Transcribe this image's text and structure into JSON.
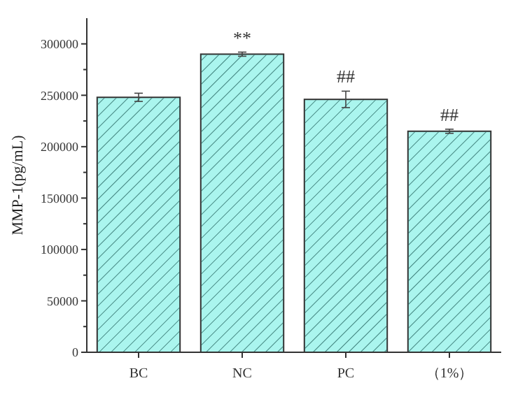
{
  "chart_data": {
    "type": "bar",
    "ylabel": "MMP-1(pg/mL)",
    "categories": [
      "BC",
      "NC",
      "PC",
      "（1%）"
    ],
    "values": [
      248000,
      290000,
      246000,
      215000
    ],
    "errors": [
      4000,
      2000,
      8000,
      2000
    ],
    "color": "#aaf5ee",
    "ylim": [
      0,
      325000
    ],
    "yticks": [
      0,
      {
        "value": 25000,
        "label": null
      },
      50000,
      {
        "value": 75000,
        "label": null
      },
      100000,
      {
        "value": 125000,
        "label": null
      },
      150000,
      {
        "value": 175000,
        "label": null
      },
      200000,
      {
        "value": 225000,
        "label": null
      },
      250000,
      {
        "value": 275000,
        "label": null
      },
      300000
    ],
    "annotations": [
      {
        "text": "**",
        "x": "NC",
        "y": 292000
      },
      {
        "text": "##",
        "x": "PC",
        "y": 254000
      },
      {
        "text": "##",
        "x": "（1%）",
        "y": 217000
      }
    ],
    "grid": false
  }
}
